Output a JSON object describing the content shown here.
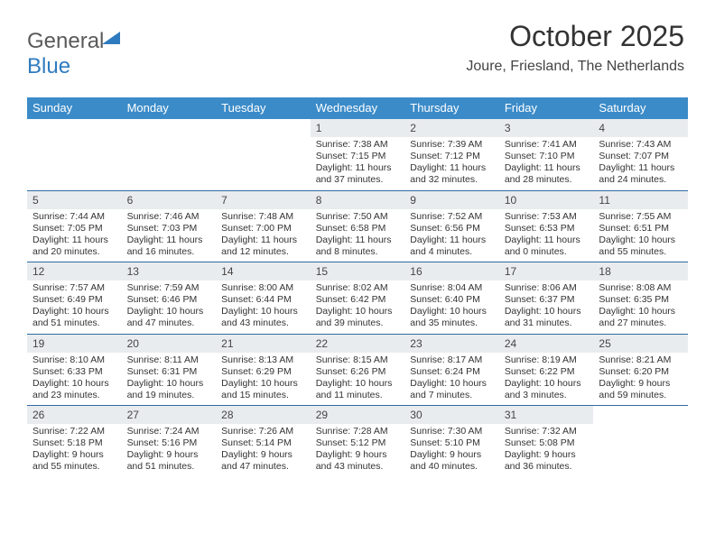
{
  "logo": {
    "text_gray": "General",
    "text_blue": "Blue"
  },
  "title": "October 2025",
  "location": "Joure, Friesland, The Netherlands",
  "colors": {
    "header_bg": "#3b8bc8",
    "header_text": "#ffffff",
    "daynum_bg": "#e9ecef",
    "divider": "#2f6aa0",
    "body_text": "#333333",
    "logo_gray": "#5a5a5a",
    "logo_blue": "#2f7bbf",
    "background": "#ffffff"
  },
  "typography": {
    "title_fontsize": 32,
    "location_fontsize": 16,
    "header_fontsize": 13,
    "daynum_fontsize": 12,
    "cell_fontsize": 10.5
  },
  "layout": {
    "columns": 7,
    "rows": 5,
    "cell_min_height": 78,
    "calendar_width": 732
  },
  "headers": [
    "Sunday",
    "Monday",
    "Tuesday",
    "Wednesday",
    "Thursday",
    "Friday",
    "Saturday"
  ],
  "weeks": [
    [
      {
        "empty": true
      },
      {
        "empty": true
      },
      {
        "empty": true
      },
      {
        "day": "1",
        "sunrise": "Sunrise: 7:38 AM",
        "sunset": "Sunset: 7:15 PM",
        "daylight": "Daylight: 11 hours and 37 minutes."
      },
      {
        "day": "2",
        "sunrise": "Sunrise: 7:39 AM",
        "sunset": "Sunset: 7:12 PM",
        "daylight": "Daylight: 11 hours and 32 minutes."
      },
      {
        "day": "3",
        "sunrise": "Sunrise: 7:41 AM",
        "sunset": "Sunset: 7:10 PM",
        "daylight": "Daylight: 11 hours and 28 minutes."
      },
      {
        "day": "4",
        "sunrise": "Sunrise: 7:43 AM",
        "sunset": "Sunset: 7:07 PM",
        "daylight": "Daylight: 11 hours and 24 minutes."
      }
    ],
    [
      {
        "day": "5",
        "sunrise": "Sunrise: 7:44 AM",
        "sunset": "Sunset: 7:05 PM",
        "daylight": "Daylight: 11 hours and 20 minutes."
      },
      {
        "day": "6",
        "sunrise": "Sunrise: 7:46 AM",
        "sunset": "Sunset: 7:03 PM",
        "daylight": "Daylight: 11 hours and 16 minutes."
      },
      {
        "day": "7",
        "sunrise": "Sunrise: 7:48 AM",
        "sunset": "Sunset: 7:00 PM",
        "daylight": "Daylight: 11 hours and 12 minutes."
      },
      {
        "day": "8",
        "sunrise": "Sunrise: 7:50 AM",
        "sunset": "Sunset: 6:58 PM",
        "daylight": "Daylight: 11 hours and 8 minutes."
      },
      {
        "day": "9",
        "sunrise": "Sunrise: 7:52 AM",
        "sunset": "Sunset: 6:56 PM",
        "daylight": "Daylight: 11 hours and 4 minutes."
      },
      {
        "day": "10",
        "sunrise": "Sunrise: 7:53 AM",
        "sunset": "Sunset: 6:53 PM",
        "daylight": "Daylight: 11 hours and 0 minutes."
      },
      {
        "day": "11",
        "sunrise": "Sunrise: 7:55 AM",
        "sunset": "Sunset: 6:51 PM",
        "daylight": "Daylight: 10 hours and 55 minutes."
      }
    ],
    [
      {
        "day": "12",
        "sunrise": "Sunrise: 7:57 AM",
        "sunset": "Sunset: 6:49 PM",
        "daylight": "Daylight: 10 hours and 51 minutes."
      },
      {
        "day": "13",
        "sunrise": "Sunrise: 7:59 AM",
        "sunset": "Sunset: 6:46 PM",
        "daylight": "Daylight: 10 hours and 47 minutes."
      },
      {
        "day": "14",
        "sunrise": "Sunrise: 8:00 AM",
        "sunset": "Sunset: 6:44 PM",
        "daylight": "Daylight: 10 hours and 43 minutes."
      },
      {
        "day": "15",
        "sunrise": "Sunrise: 8:02 AM",
        "sunset": "Sunset: 6:42 PM",
        "daylight": "Daylight: 10 hours and 39 minutes."
      },
      {
        "day": "16",
        "sunrise": "Sunrise: 8:04 AM",
        "sunset": "Sunset: 6:40 PM",
        "daylight": "Daylight: 10 hours and 35 minutes."
      },
      {
        "day": "17",
        "sunrise": "Sunrise: 8:06 AM",
        "sunset": "Sunset: 6:37 PM",
        "daylight": "Daylight: 10 hours and 31 minutes."
      },
      {
        "day": "18",
        "sunrise": "Sunrise: 8:08 AM",
        "sunset": "Sunset: 6:35 PM",
        "daylight": "Daylight: 10 hours and 27 minutes."
      }
    ],
    [
      {
        "day": "19",
        "sunrise": "Sunrise: 8:10 AM",
        "sunset": "Sunset: 6:33 PM",
        "daylight": "Daylight: 10 hours and 23 minutes."
      },
      {
        "day": "20",
        "sunrise": "Sunrise: 8:11 AM",
        "sunset": "Sunset: 6:31 PM",
        "daylight": "Daylight: 10 hours and 19 minutes."
      },
      {
        "day": "21",
        "sunrise": "Sunrise: 8:13 AM",
        "sunset": "Sunset: 6:29 PM",
        "daylight": "Daylight: 10 hours and 15 minutes."
      },
      {
        "day": "22",
        "sunrise": "Sunrise: 8:15 AM",
        "sunset": "Sunset: 6:26 PM",
        "daylight": "Daylight: 10 hours and 11 minutes."
      },
      {
        "day": "23",
        "sunrise": "Sunrise: 8:17 AM",
        "sunset": "Sunset: 6:24 PM",
        "daylight": "Daylight: 10 hours and 7 minutes."
      },
      {
        "day": "24",
        "sunrise": "Sunrise: 8:19 AM",
        "sunset": "Sunset: 6:22 PM",
        "daylight": "Daylight: 10 hours and 3 minutes."
      },
      {
        "day": "25",
        "sunrise": "Sunrise: 8:21 AM",
        "sunset": "Sunset: 6:20 PM",
        "daylight": "Daylight: 9 hours and 59 minutes."
      }
    ],
    [
      {
        "day": "26",
        "sunrise": "Sunrise: 7:22 AM",
        "sunset": "Sunset: 5:18 PM",
        "daylight": "Daylight: 9 hours and 55 minutes."
      },
      {
        "day": "27",
        "sunrise": "Sunrise: 7:24 AM",
        "sunset": "Sunset: 5:16 PM",
        "daylight": "Daylight: 9 hours and 51 minutes."
      },
      {
        "day": "28",
        "sunrise": "Sunrise: 7:26 AM",
        "sunset": "Sunset: 5:14 PM",
        "daylight": "Daylight: 9 hours and 47 minutes."
      },
      {
        "day": "29",
        "sunrise": "Sunrise: 7:28 AM",
        "sunset": "Sunset: 5:12 PM",
        "daylight": "Daylight: 9 hours and 43 minutes."
      },
      {
        "day": "30",
        "sunrise": "Sunrise: 7:30 AM",
        "sunset": "Sunset: 5:10 PM",
        "daylight": "Daylight: 9 hours and 40 minutes."
      },
      {
        "day": "31",
        "sunrise": "Sunrise: 7:32 AM",
        "sunset": "Sunset: 5:08 PM",
        "daylight": "Daylight: 9 hours and 36 minutes."
      },
      {
        "empty": true
      }
    ]
  ]
}
